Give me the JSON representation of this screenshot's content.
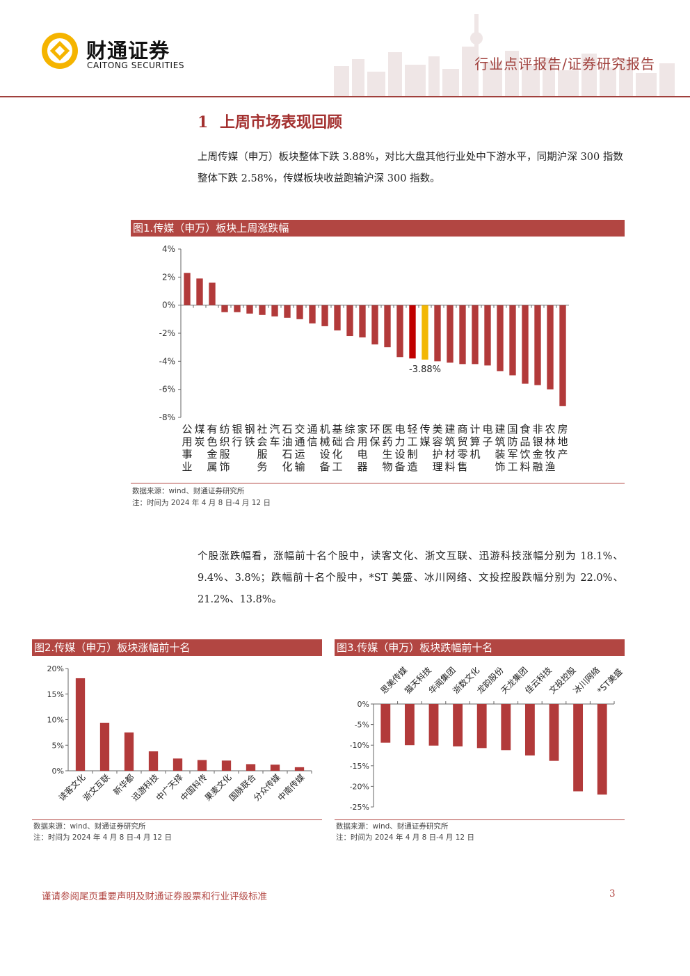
{
  "header": {
    "logo_cn": "财通证券",
    "logo_en": "CAITONG SECURITIES",
    "report_type": "行业点评报告/证券研究报告"
  },
  "section": {
    "number": "1",
    "title": "上周市场表现回顾"
  },
  "paragraphs": {
    "p1": "上周传媒（申万）板块整体下跌 3.88%，对比大盘其他行业处中下游水平，同期沪深 300 指数整体下跌 2.58%，传媒板块收益跑输沪深 300 指数。",
    "p2": "个股涨跌幅看，涨幅前十名个股中，读客文化、浙文互联、迅游科技涨幅分别为 18.1%、9.4%、3.8%；跌幅前十名个股中，*ST 美盛、冰川网络、文投控股跌幅分别为 22.0%、21.2%、13.8%。"
  },
  "figures": {
    "fig1": {
      "title": "图1.传媒（申万）板块上周涨跌幅",
      "source": "数据来源：wind、财通证券研究所",
      "note": "注：时间为 2024 年 4 月 8 日-4 月 12 日",
      "annotation": "-3.88%"
    },
    "fig2": {
      "title": "图2.传媒（申万）板块涨幅前十名",
      "source": "数据来源：wind、财通证券研究所",
      "note": "注：时间为 2024 年 4 月 8 日-4 月 12 日"
    },
    "fig3": {
      "title": "图3.传媒（申万）板块跌幅前十名",
      "source": "数据来源：wind、财通证券研究所",
      "note": "注：时间为 2024 年 4 月 8 日-4 月 12 日"
    }
  },
  "chart_data": [
    {
      "id": "fig1",
      "type": "bar",
      "categories": [
        "公用事业",
        "煤炭",
        "有色金属",
        "纺织服饰",
        "银行",
        "钢铁",
        "社会服务",
        "汽车",
        "石油石化",
        "交通运输",
        "通信",
        "机械设备",
        "基础化工",
        "综合",
        "家用电器",
        "环保",
        "医药生物",
        "电力设备",
        "轻工制造",
        "传媒",
        "美容护理",
        "建筑材料",
        "商贸零售",
        "计算机",
        "电子",
        "建筑装饰",
        "国防军工",
        "食品饮料",
        "非银金融",
        "农林牧渔",
        "房地产"
      ],
      "values": [
        2.3,
        1.9,
        1.6,
        -0.5,
        -0.5,
        -0.6,
        -0.7,
        -0.8,
        -0.9,
        -1.0,
        -1.3,
        -1.5,
        -1.8,
        -2.2,
        -2.3,
        -2.8,
        -3.0,
        -3.7,
        -3.8,
        -3.88,
        -4.0,
        -4.1,
        -4.2,
        -4.2,
        -4.3,
        -4.7,
        -5.0,
        -5.6,
        -5.7,
        -6.0,
        -7.2
      ],
      "highlight": {
        "传媒": "#f2b705",
        "轻工制造": "#c00000"
      },
      "bar_color": "#b23a3a",
      "ylim": [
        -8,
        4
      ],
      "yticks": [
        "4%",
        "2%",
        "0%",
        "-2%",
        "-4%",
        "-6%",
        "-8%"
      ],
      "ytick_values": [
        4,
        2,
        0,
        -2,
        -4,
        -6,
        -8
      ],
      "grid": false
    },
    {
      "id": "fig2",
      "type": "bar",
      "categories": [
        "读客文化",
        "浙文互联",
        "新华都",
        "迅游科技",
        "中广天择",
        "中国科传",
        "果麦文化",
        "国脉联合",
        "分众传媒",
        "中南传媒"
      ],
      "values": [
        18.1,
        9.4,
        7.5,
        3.8,
        2.4,
        2.1,
        2.0,
        1.3,
        1.2,
        0.7
      ],
      "bar_color": "#b23a3a",
      "ylim": [
        0,
        20
      ],
      "yticks": [
        "20%",
        "15%",
        "10%",
        "5%",
        "0%"
      ],
      "ytick_values": [
        20,
        15,
        10,
        5,
        0
      ],
      "grid": false
    },
    {
      "id": "fig3",
      "type": "bar",
      "categories": [
        "思美传媒",
        "猫天科技",
        "华闻集团",
        "浙数文化",
        "龙韵股份",
        "天龙集团",
        "佳云科技",
        "文投控股",
        "冰川网络",
        "*ST美盛"
      ],
      "values": [
        -9.4,
        -10.0,
        -10.1,
        -10.3,
        -10.7,
        -11.2,
        -12.5,
        -13.8,
        -21.2,
        -22.0
      ],
      "bar_color": "#b23a3a",
      "ylim": [
        -25,
        0
      ],
      "yticks": [
        "0%",
        "-5%",
        "-10%",
        "-15%",
        "-20%",
        "-25%"
      ],
      "ytick_values": [
        0,
        -5,
        -10,
        -15,
        -20,
        -25
      ],
      "grid": false
    }
  ],
  "footer": {
    "disclaimer": "谨请参阅尾页重要声明及财通证券股票和行业评级标准",
    "page_number": "3"
  }
}
